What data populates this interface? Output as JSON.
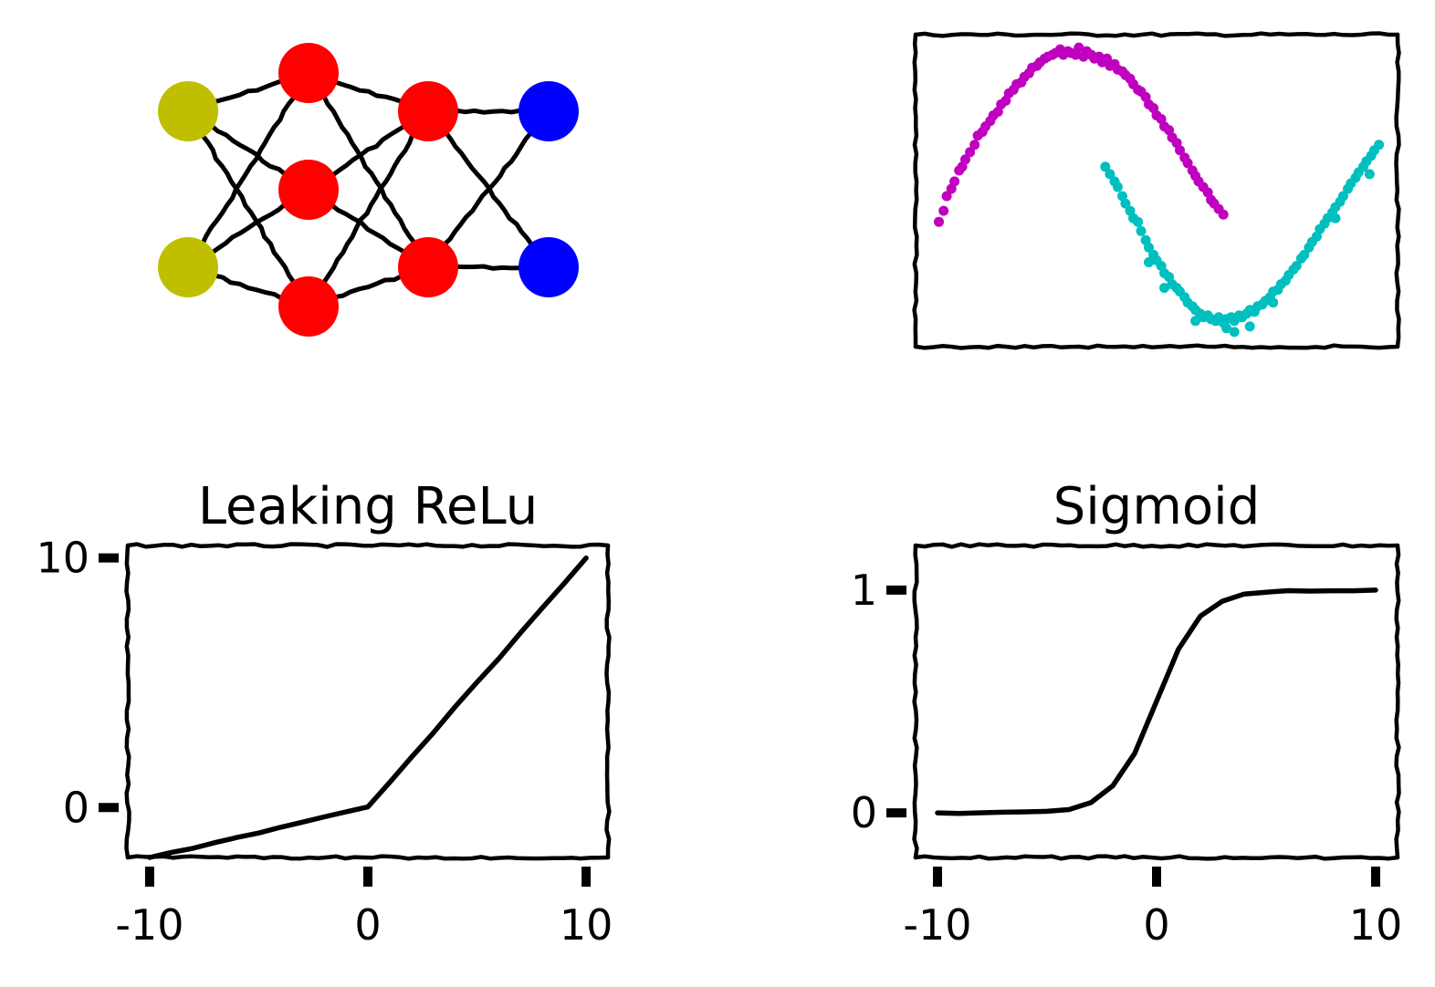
{
  "chart_data": [
    {
      "type": "diagram",
      "layers": [
        2,
        3,
        2,
        2
      ],
      "colors": [
        "#bfbf00",
        "#ff0000",
        "#ff0000",
        "#0000ff"
      ]
    },
    {
      "type": "scatter",
      "series": [
        {
          "color": "#bf00bf",
          "values": [
            [
              -0.95,
              0.08
            ],
            [
              -0.92,
              0.14
            ],
            [
              -0.9,
              0.22
            ],
            [
              -0.87,
              0.26
            ],
            [
              -0.85,
              0.3
            ],
            [
              -0.82,
              0.36
            ],
            [
              -0.8,
              0.38
            ],
            [
              -0.78,
              0.42
            ],
            [
              -0.75,
              0.46
            ],
            [
              -0.72,
              0.5
            ],
            [
              -0.7,
              0.55
            ],
            [
              -0.67,
              0.57
            ],
            [
              -0.65,
              0.6
            ],
            [
              -0.62,
              0.63
            ],
            [
              -0.6,
              0.66
            ],
            [
              -0.57,
              0.68
            ],
            [
              -0.55,
              0.72
            ],
            [
              -0.52,
              0.74
            ],
            [
              -0.5,
              0.78
            ],
            [
              -0.47,
              0.8
            ],
            [
              -0.45,
              0.83
            ],
            [
              -0.42,
              0.84
            ],
            [
              -0.4,
              0.87
            ],
            [
              -0.37,
              0.89
            ],
            [
              -0.35,
              0.92
            ],
            [
              -0.32,
              0.93
            ],
            [
              -0.3,
              0.95
            ],
            [
              -0.27,
              0.97
            ],
            [
              -0.25,
              0.98
            ],
            [
              -0.22,
              0.99
            ],
            [
              -0.2,
              1.0
            ],
            [
              -0.17,
              1.02
            ],
            [
              -0.15,
              0.99
            ],
            [
              -0.12,
              1.01
            ],
            [
              -0.1,
              1.0
            ],
            [
              -0.07,
              0.99
            ],
            [
              -0.05,
              1.03
            ],
            [
              -0.02,
              0.98
            ],
            [
              0.0,
              1.01
            ],
            [
              0.03,
              0.99
            ],
            [
              0.05,
              0.97
            ],
            [
              0.08,
              0.98
            ],
            [
              0.1,
              0.95
            ],
            [
              0.13,
              0.97
            ],
            [
              0.15,
              0.93
            ],
            [
              0.18,
              0.94
            ],
            [
              0.2,
              0.91
            ],
            [
              0.23,
              0.9
            ],
            [
              0.25,
              0.88
            ],
            [
              0.28,
              0.86
            ],
            [
              0.3,
              0.83
            ],
            [
              0.33,
              0.8
            ],
            [
              0.35,
              0.79
            ],
            [
              0.38,
              0.76
            ],
            [
              0.4,
              0.72
            ],
            [
              0.43,
              0.7
            ],
            [
              0.45,
              0.66
            ],
            [
              0.48,
              0.64
            ],
            [
              0.5,
              0.6
            ],
            [
              0.53,
              0.58
            ],
            [
              0.55,
              0.54
            ],
            [
              0.58,
              0.51
            ],
            [
              0.6,
              0.47
            ],
            [
              0.63,
              0.43
            ],
            [
              0.65,
              0.4
            ],
            [
              0.68,
              0.36
            ],
            [
              0.7,
              0.33
            ],
            [
              0.72,
              0.3
            ],
            [
              0.75,
              0.27
            ],
            [
              0.78,
              0.24
            ],
            [
              0.8,
              0.2
            ],
            [
              0.82,
              0.18
            ],
            [
              0.85,
              0.15
            ],
            [
              0.88,
              0.12
            ]
          ]
        },
        {
          "color": "#00bfbf",
          "values": [
            [
              0.12,
              0.38
            ],
            [
              0.15,
              0.34
            ],
            [
              0.18,
              0.3
            ],
            [
              0.2,
              0.27
            ],
            [
              0.23,
              0.22
            ],
            [
              0.25,
              0.18
            ],
            [
              0.28,
              0.14
            ],
            [
              0.3,
              0.1
            ],
            [
              0.33,
              0.08
            ],
            [
              0.35,
              0.03
            ],
            [
              0.38,
              -0.02
            ],
            [
              0.4,
              -0.06
            ],
            [
              0.43,
              -0.1
            ],
            [
              0.45,
              -0.13
            ],
            [
              0.48,
              -0.16
            ],
            [
              0.5,
              -0.2
            ],
            [
              0.53,
              -0.22
            ],
            [
              0.55,
              -0.26
            ],
            [
              0.58,
              -0.28
            ],
            [
              0.6,
              -0.3
            ],
            [
              0.63,
              -0.33
            ],
            [
              0.65,
              -0.36
            ],
            [
              0.68,
              -0.38
            ],
            [
              0.7,
              -0.4
            ],
            [
              0.73,
              -0.42
            ],
            [
              0.75,
              -0.44
            ],
            [
              0.78,
              -0.43
            ],
            [
              0.8,
              -0.45
            ],
            [
              0.83,
              -0.46
            ],
            [
              0.85,
              -0.44
            ],
            [
              0.88,
              -0.47
            ],
            [
              0.9,
              -0.45
            ],
            [
              0.93,
              -0.44
            ],
            [
              0.95,
              -0.46
            ],
            [
              0.98,
              -0.43
            ],
            [
              1.0,
              -0.44
            ],
            [
              1.03,
              -0.42
            ],
            [
              1.05,
              -0.4
            ],
            [
              1.08,
              -0.41
            ],
            [
              1.1,
              -0.38
            ],
            [
              1.13,
              -0.37
            ],
            [
              1.15,
              -0.35
            ],
            [
              1.18,
              -0.33
            ],
            [
              1.2,
              -0.3
            ],
            [
              1.23,
              -0.29
            ],
            [
              1.25,
              -0.26
            ],
            [
              1.28,
              -0.24
            ],
            [
              1.3,
              -0.21
            ],
            [
              1.33,
              -0.18
            ],
            [
              1.35,
              -0.16
            ],
            [
              1.38,
              -0.12
            ],
            [
              1.4,
              -0.1
            ],
            [
              1.43,
              -0.06
            ],
            [
              1.45,
              -0.03
            ],
            [
              1.48,
              0.0
            ],
            [
              1.5,
              0.04
            ],
            [
              1.53,
              0.07
            ],
            [
              1.55,
              0.1
            ],
            [
              1.58,
              0.13
            ],
            [
              1.6,
              0.16
            ],
            [
              1.63,
              0.19
            ],
            [
              1.65,
              0.22
            ],
            [
              1.68,
              0.26
            ],
            [
              1.7,
              0.29
            ],
            [
              1.73,
              0.32
            ],
            [
              1.75,
              0.35
            ],
            [
              1.78,
              0.38
            ],
            [
              1.8,
              0.41
            ],
            [
              1.83,
              0.44
            ],
            [
              1.85,
              0.47
            ],
            [
              1.88,
              0.5
            ],
            [
              0.9,
              -0.5
            ],
            [
              0.95,
              -0.52
            ],
            [
              1.05,
              -0.49
            ],
            [
              0.7,
              -0.46
            ],
            [
              1.2,
              -0.36
            ],
            [
              0.5,
              -0.28
            ],
            [
              0.4,
              -0.14
            ],
            [
              1.6,
              0.1
            ],
            [
              1.82,
              0.34
            ]
          ]
        }
      ]
    },
    {
      "type": "line",
      "title": "Leaking ReLu",
      "x": [
        -10,
        -9,
        -8,
        -7,
        -6,
        -5,
        -4,
        -3,
        -2,
        -1,
        0,
        1,
        2,
        3,
        4,
        5,
        6,
        7,
        8,
        9,
        10
      ],
      "y": [
        -2,
        -1.8,
        -1.6,
        -1.4,
        -1.2,
        -1,
        -0.8,
        -0.6,
        -0.4,
        -0.2,
        0,
        1,
        2,
        3,
        4,
        5,
        6,
        7,
        8,
        9,
        10
      ],
      "xticks": [
        "-10",
        "0",
        "10"
      ],
      "xtick_values": [
        -10,
        0,
        10
      ],
      "yticks": [
        "0",
        "10"
      ],
      "ytick_values": [
        0,
        10
      ],
      "xlim": [
        -11,
        11
      ],
      "ylim": [
        -2,
        10.5
      ]
    },
    {
      "type": "line",
      "title": "Sigmoid",
      "x": [
        -10,
        -9,
        -8,
        -7,
        -6,
        -5,
        -4,
        -3,
        -2,
        -1,
        0,
        1,
        2,
        3,
        4,
        5,
        6,
        7,
        8,
        9,
        10
      ],
      "y": [
        0,
        0.0001,
        0.0003,
        0.0009,
        0.0025,
        0.0067,
        0.018,
        0.047,
        0.119,
        0.269,
        0.5,
        0.731,
        0.881,
        0.953,
        0.982,
        0.993,
        0.998,
        0.999,
        1,
        1,
        1
      ],
      "xticks": [
        "-10",
        "0",
        "10"
      ],
      "xtick_values": [
        -10,
        0,
        10
      ],
      "yticks": [
        "0",
        "1"
      ],
      "ytick_values": [
        0,
        1
      ],
      "xlim": [
        -11,
        11
      ],
      "ylim": [
        -0.2,
        1.2
      ]
    }
  ]
}
